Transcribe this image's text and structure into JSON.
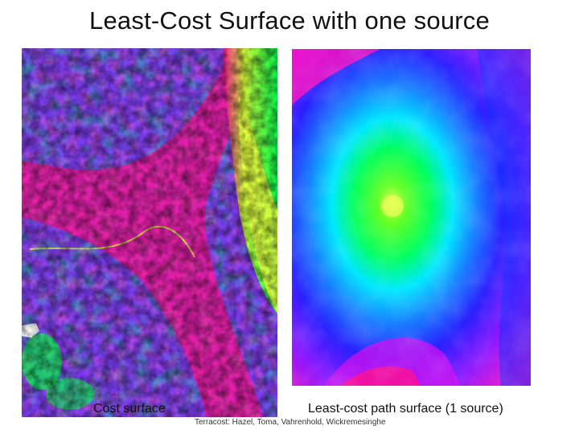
{
  "slide": {
    "title": "Least-Cost Surface with one source",
    "left_caption": "Cost surface",
    "right_caption": "Least-cost path surface (1 source)",
    "credit": "Terracost: Hazel, Toma, Vahrenhold, Wickremesinghe"
  },
  "colors": {
    "magenta": "#ff1493",
    "blue": "#0000ff",
    "violet": "#8a2be2",
    "green": "#00ff40",
    "yellow_green": "#c8ff30",
    "cyan": "#00e5ff",
    "white": "#ffffff"
  }
}
